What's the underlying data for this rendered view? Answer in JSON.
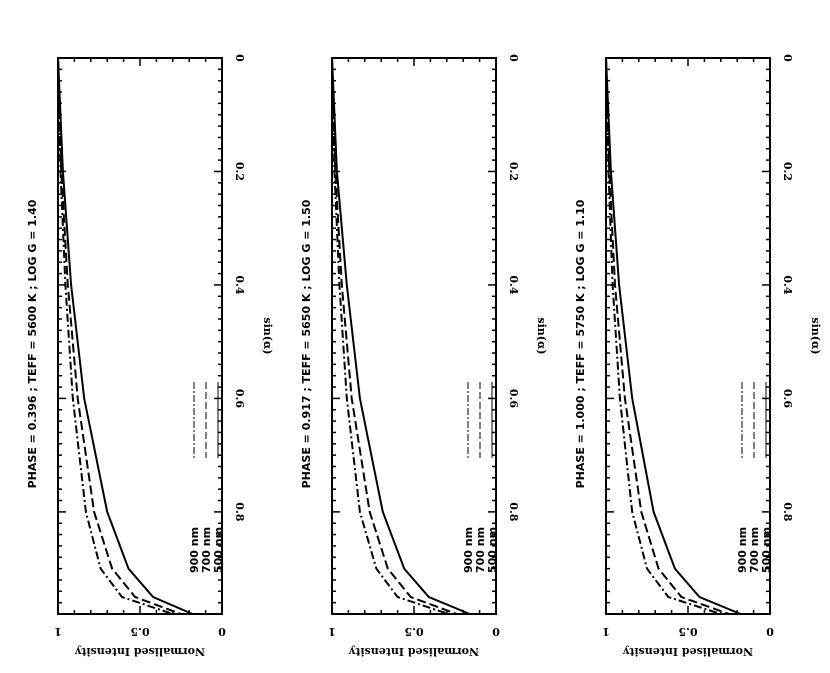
{
  "chart_data": [
    {
      "type": "line",
      "title": "PHASE = 0.396 ; TEFF =   5600 K ; LOG G = 1.40",
      "xlabel": "sin(α)",
      "ylabel": "Normalised Intensity",
      "xlim": [
        0,
        0.98
      ],
      "ylim": [
        0,
        1
      ],
      "xticks": [
        "0",
        "0.2",
        "0.4",
        "0.6",
        "0.8"
      ],
      "yticks": [
        "0",
        "0.5",
        "1"
      ],
      "legend": [
        "500 nm",
        "700 nm",
        "900 nm"
      ],
      "series": [
        {
          "name": "500 nm",
          "style": "solid",
          "x": [
            0,
            0.2,
            0.4,
            0.6,
            0.8,
            0.9,
            0.95,
            0.98
          ],
          "y": [
            1.0,
            0.97,
            0.92,
            0.84,
            0.7,
            0.57,
            0.42,
            0.18
          ]
        },
        {
          "name": "700 nm",
          "style": "dashed",
          "x": [
            0,
            0.2,
            0.4,
            0.6,
            0.8,
            0.9,
            0.95,
            0.98
          ],
          "y": [
            1.0,
            0.98,
            0.94,
            0.88,
            0.78,
            0.67,
            0.53,
            0.25
          ]
        },
        {
          "name": "900 nm",
          "style": "dashdot",
          "x": [
            0,
            0.2,
            0.4,
            0.6,
            0.8,
            0.9,
            0.95,
            0.98
          ],
          "y": [
            1.0,
            0.985,
            0.955,
            0.91,
            0.83,
            0.74,
            0.61,
            0.3
          ]
        }
      ]
    },
    {
      "type": "line",
      "title": "PHASE = 0.917 ; TEFF =   5650 K ; LOG G = 1.50",
      "xlabel": "sin(α)",
      "ylabel": "Normalised Intensity",
      "xlim": [
        0,
        0.98
      ],
      "ylim": [
        0,
        1
      ],
      "xticks": [
        "0",
        "0.2",
        "0.4",
        "0.6",
        "0.8"
      ],
      "yticks": [
        "0",
        "0.5",
        "1"
      ],
      "legend": [
        "500 nm",
        "700 nm",
        "900 nm"
      ],
      "series": [
        {
          "name": "500 nm",
          "style": "solid",
          "x": [
            0,
            0.2,
            0.4,
            0.6,
            0.8,
            0.9,
            0.95,
            0.98
          ],
          "y": [
            1.0,
            0.97,
            0.91,
            0.83,
            0.69,
            0.56,
            0.41,
            0.16
          ]
        },
        {
          "name": "700 nm",
          "style": "dashed",
          "x": [
            0,
            0.2,
            0.4,
            0.6,
            0.8,
            0.9,
            0.95,
            0.98
          ],
          "y": [
            1.0,
            0.98,
            0.94,
            0.88,
            0.77,
            0.66,
            0.52,
            0.24
          ]
        },
        {
          "name": "900 nm",
          "style": "dashdot",
          "x": [
            0,
            0.2,
            0.4,
            0.6,
            0.8,
            0.9,
            0.95,
            0.98
          ],
          "y": [
            1.0,
            0.985,
            0.955,
            0.91,
            0.83,
            0.73,
            0.6,
            0.29
          ]
        }
      ]
    },
    {
      "type": "line",
      "title": "PHASE = 1.000 ; TEFF =   5750 K ; LOG G = 1.10",
      "xlabel": "sin(α)",
      "ylabel": "Normalised Intensity",
      "xlim": [
        0,
        0.98
      ],
      "ylim": [
        0,
        1
      ],
      "xticks": [
        "0",
        "0.2",
        "0.4",
        "0.6",
        "0.8"
      ],
      "yticks": [
        "0",
        "0.5",
        "1"
      ],
      "legend": [
        "500 nm",
        "700 nm",
        "900 nm"
      ],
      "series": [
        {
          "name": "500 nm",
          "style": "solid",
          "x": [
            0,
            0.2,
            0.4,
            0.6,
            0.8,
            0.9,
            0.95,
            0.98
          ],
          "y": [
            1.0,
            0.97,
            0.92,
            0.84,
            0.71,
            0.58,
            0.43,
            0.18
          ]
        },
        {
          "name": "700 nm",
          "style": "dashed",
          "x": [
            0,
            0.2,
            0.4,
            0.6,
            0.8,
            0.9,
            0.95,
            0.98
          ],
          "y": [
            1.0,
            0.98,
            0.945,
            0.885,
            0.785,
            0.68,
            0.54,
            0.25
          ]
        },
        {
          "name": "900 nm",
          "style": "dashdot",
          "x": [
            0,
            0.2,
            0.4,
            0.6,
            0.8,
            0.9,
            0.95,
            0.98
          ],
          "y": [
            1.0,
            0.985,
            0.96,
            0.915,
            0.84,
            0.75,
            0.62,
            0.3
          ]
        }
      ]
    }
  ]
}
